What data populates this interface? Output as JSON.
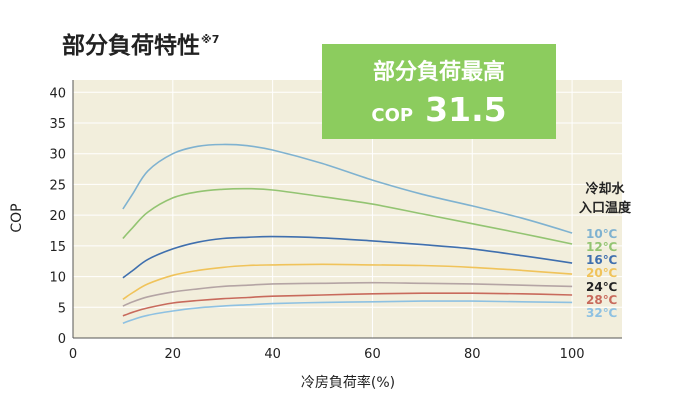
{
  "title": "部分負荷特性",
  "title_note": "※7",
  "callout": {
    "line1": "部分負荷最高",
    "cop_label": "COP",
    "cop_value": "31.5",
    "color": "#8ccc5e"
  },
  "legend": {
    "title_line1": "冷却水",
    "title_line2": "入口温度"
  },
  "chart_data": {
    "type": "line",
    "xlabel": "冷房負荷率(%)",
    "ylabel": "COP",
    "xlim": [
      0,
      110
    ],
    "ylim": [
      0,
      42
    ],
    "xticks": [
      0,
      20,
      40,
      60,
      80,
      100
    ],
    "yticks": [
      0,
      5,
      10,
      15,
      20,
      25,
      30,
      35,
      40
    ],
    "grid": true,
    "background": "#f2eedc",
    "series": [
      {
        "name": "10℃",
        "color": "#7fb2d0",
        "x": [
          10,
          12,
          15,
          20,
          25,
          30,
          35,
          40,
          50,
          60,
          70,
          80,
          90,
          100
        ],
        "y": [
          21,
          23.5,
          27.2,
          30,
          31.2,
          31.5,
          31.3,
          30.6,
          28.4,
          25.7,
          23.4,
          21.5,
          19.5,
          17.1
        ]
      },
      {
        "name": "12℃",
        "color": "#93c472",
        "x": [
          10,
          12,
          15,
          20,
          25,
          30,
          35,
          40,
          50,
          60,
          70,
          80,
          90,
          100
        ],
        "y": [
          16.2,
          18,
          20.5,
          22.8,
          23.8,
          24.2,
          24.3,
          24.1,
          23,
          21.8,
          20.2,
          18.6,
          17,
          15.3
        ]
      },
      {
        "name": "16℃",
        "color": "#3f6fae",
        "x": [
          10,
          12,
          15,
          20,
          25,
          30,
          35,
          40,
          50,
          60,
          70,
          80,
          90,
          100
        ],
        "y": [
          9.8,
          11,
          12.8,
          14.5,
          15.6,
          16.2,
          16.4,
          16.5,
          16.3,
          15.8,
          15.2,
          14.5,
          13.4,
          12.2
        ]
      },
      {
        "name": "20℃",
        "color": "#f0c35a",
        "x": [
          10,
          12,
          15,
          20,
          25,
          30,
          35,
          40,
          50,
          60,
          70,
          80,
          90,
          100
        ],
        "y": [
          6.3,
          7.4,
          8.8,
          10.2,
          11,
          11.5,
          11.8,
          11.9,
          12,
          11.9,
          11.8,
          11.5,
          11,
          10.4
        ]
      },
      {
        "name": "24℃",
        "color": "#b4a4a4",
        "x": [
          10,
          12,
          15,
          20,
          25,
          30,
          35,
          40,
          50,
          60,
          70,
          80,
          90,
          100
        ],
        "y": [
          5.2,
          5.9,
          6.7,
          7.5,
          8,
          8.4,
          8.6,
          8.8,
          8.9,
          9,
          8.9,
          8.8,
          8.6,
          8.4
        ]
      },
      {
        "name": "28℃",
        "color": "#c86a5c",
        "x": [
          10,
          12,
          15,
          20,
          25,
          30,
          35,
          40,
          50,
          60,
          70,
          80,
          90,
          100
        ],
        "y": [
          3.6,
          4.2,
          4.9,
          5.7,
          6.1,
          6.4,
          6.6,
          6.8,
          7,
          7.2,
          7.3,
          7.3,
          7.2,
          7
        ]
      },
      {
        "name": "32℃",
        "color": "#8ec1e2",
        "x": [
          10,
          12,
          15,
          20,
          25,
          30,
          35,
          40,
          50,
          60,
          70,
          80,
          90,
          100
        ],
        "y": [
          2.4,
          3,
          3.7,
          4.4,
          4.9,
          5.2,
          5.4,
          5.6,
          5.8,
          5.9,
          6,
          6,
          5.9,
          5.8
        ]
      }
    ]
  }
}
